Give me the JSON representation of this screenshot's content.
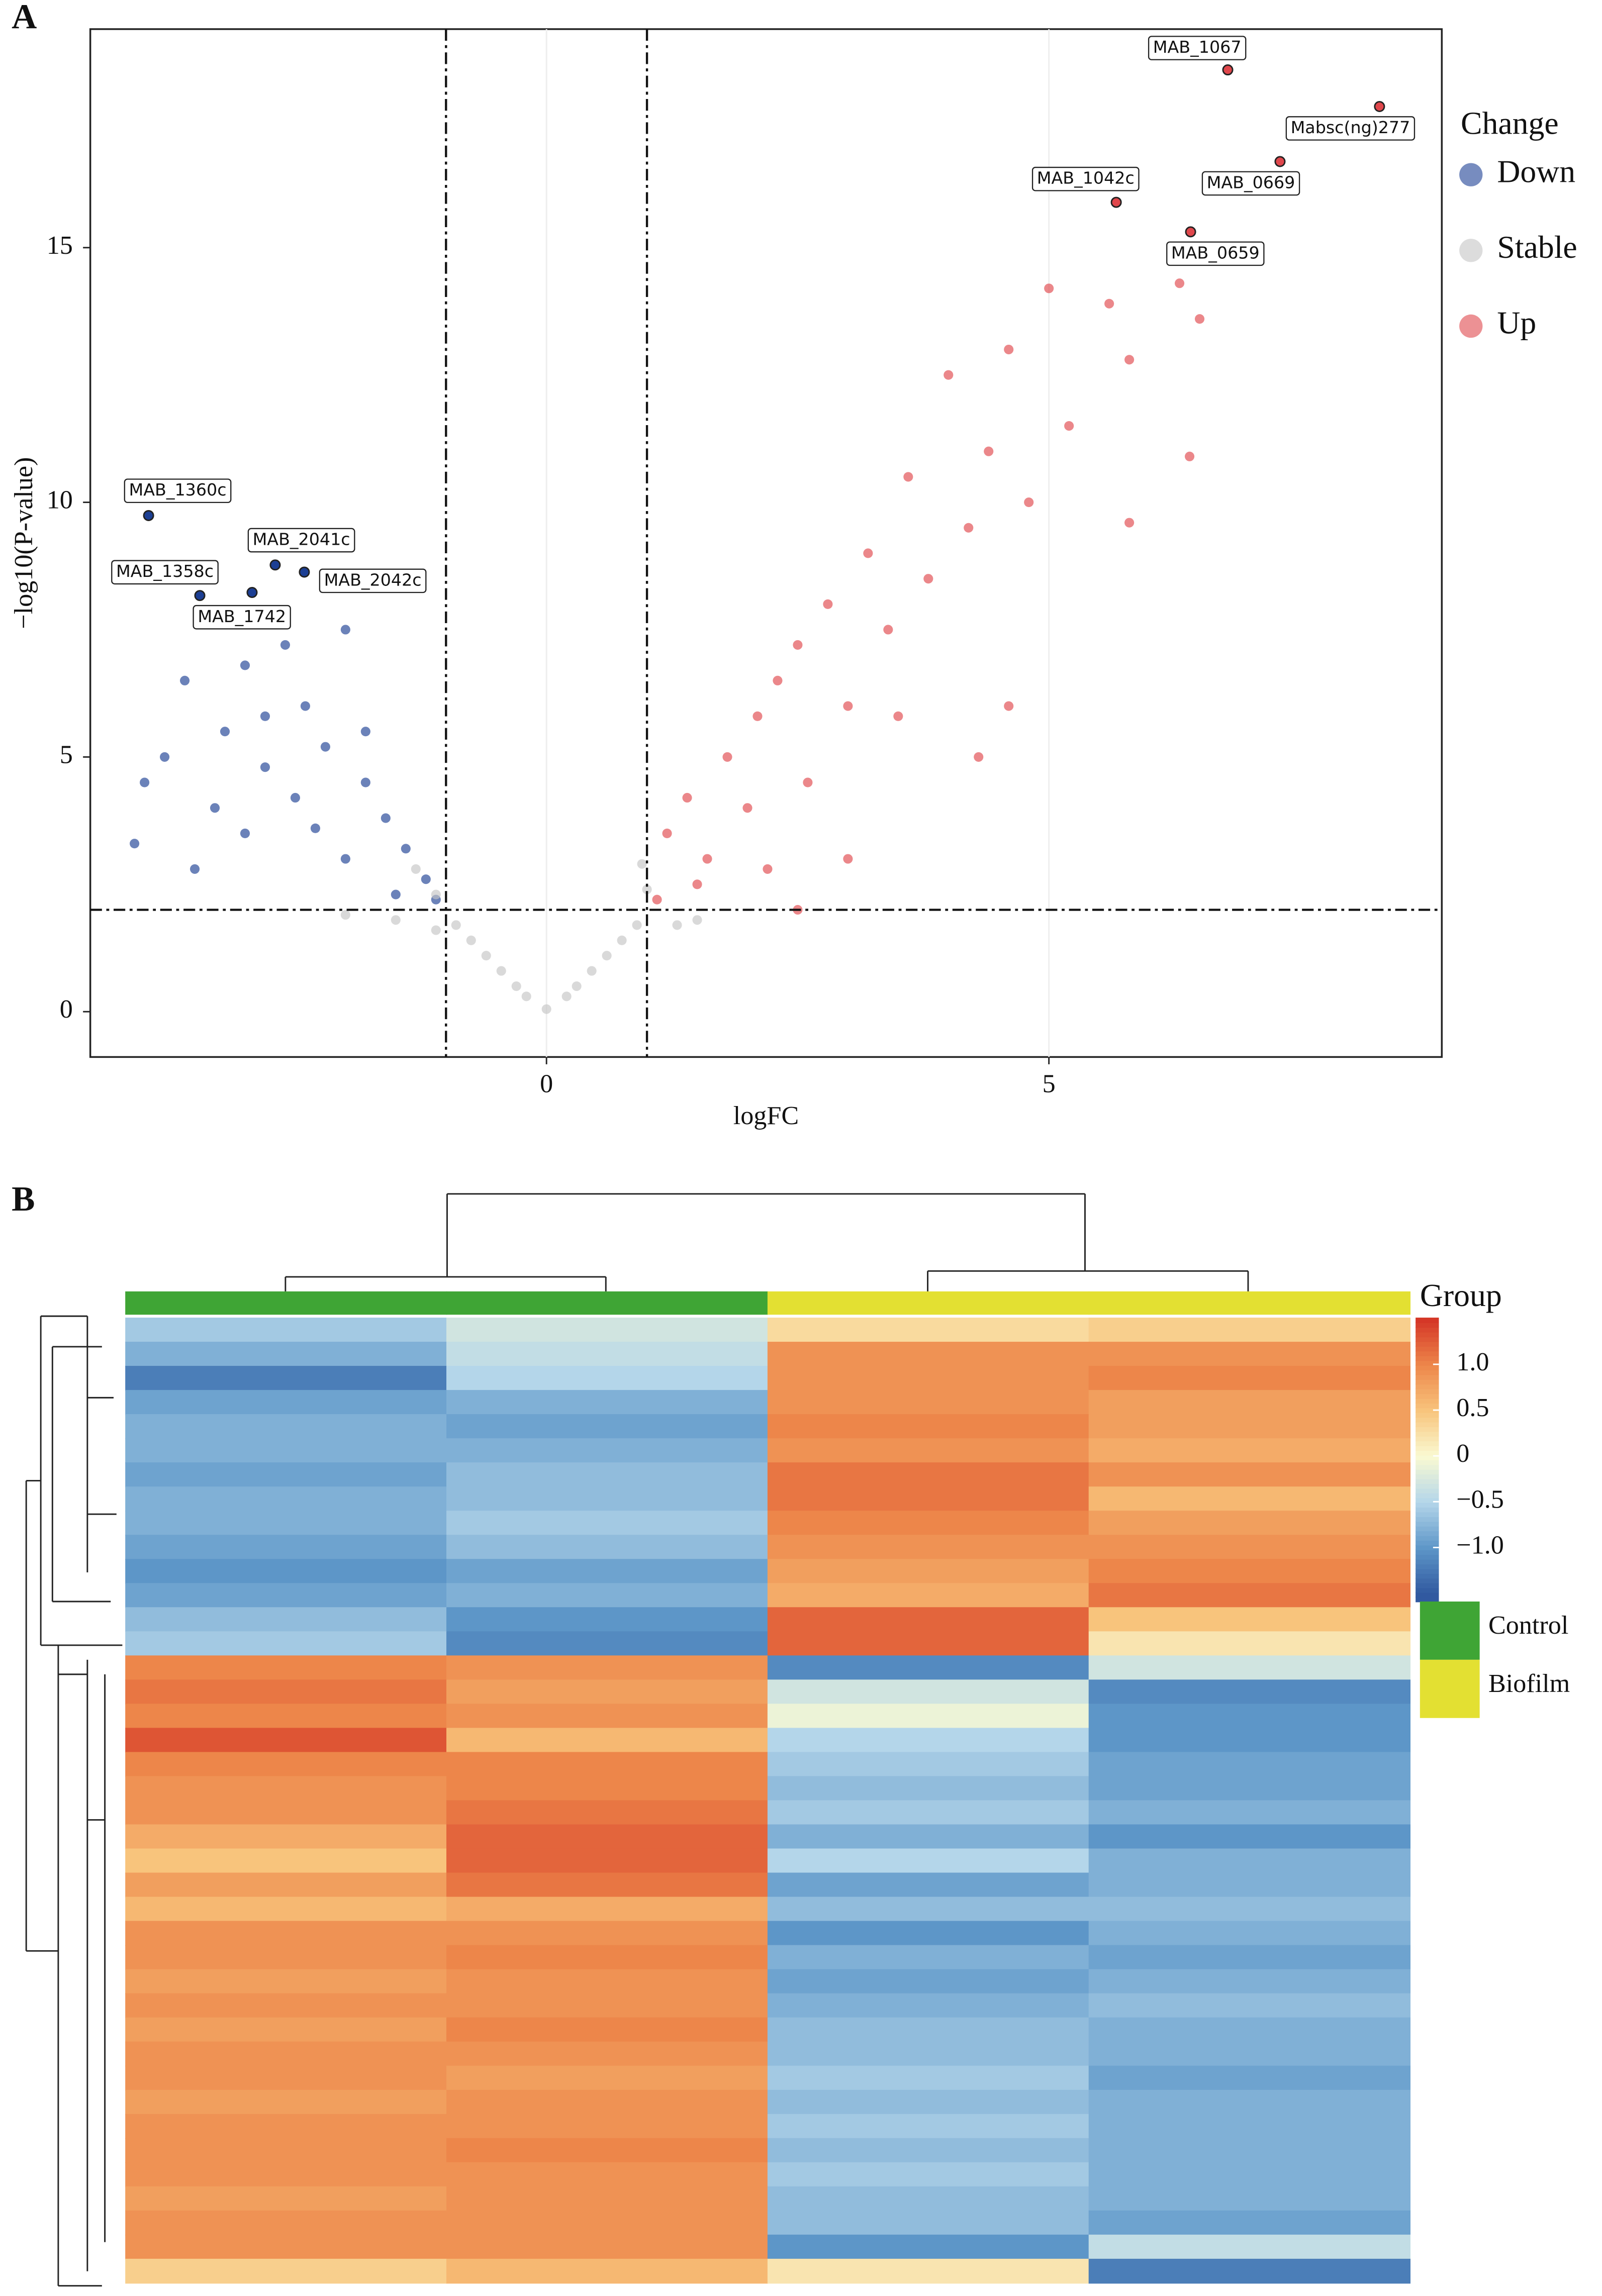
{
  "chart_data": [
    {
      "type": "scatter",
      "panel": "A",
      "xlabel": "logFC",
      "ylabel": "−log10(P-value)",
      "xlim": [
        -4.54,
        8.91
      ],
      "ylim": [
        -0.89,
        19.29
      ],
      "xticks": [
        0,
        5
      ],
      "yticks": [
        0,
        5,
        10,
        15
      ],
      "vlines": [
        -1,
        1
      ],
      "hlines": [
        2
      ],
      "legend_title": "Change",
      "legend": "right",
      "series": [
        {
          "name": "Down",
          "color": "#1c3f94",
          "x": [
            -4.0,
            -3.6,
            -3.2,
            -3.0,
            -2.8,
            -2.6,
            -2.4,
            -2.2,
            -2.0,
            -1.8,
            -1.6,
            -1.4,
            -1.2,
            -2.5,
            -3.0,
            -3.5,
            -4.1,
            -2.0,
            -1.5,
            -2.8,
            -3.3,
            -1.8,
            -2.3,
            -1.1,
            -3.8
          ],
          "y": [
            4.5,
            6.5,
            5.5,
            6.8,
            5.8,
            7.2,
            6.0,
            5.2,
            7.5,
            4.5,
            3.8,
            3.2,
            2.6,
            4.2,
            3.5,
            2.8,
            3.3,
            3.0,
            2.3,
            4.8,
            4.0,
            5.5,
            3.6,
            2.2,
            5.0
          ]
        },
        {
          "name": "Stable",
          "color": "#c4c4c4",
          "x": [
            0,
            -0.3,
            0.3,
            -0.6,
            0.6,
            -0.9,
            0.9,
            -1.1,
            1.0,
            -1.5,
            1.5,
            -2.0,
            -0.2,
            0.2,
            -0.45,
            0.45,
            -0.75,
            0.75,
            -1.3,
            0.95,
            1.3,
            -1.1
          ],
          "y": [
            0.05,
            0.5,
            0.5,
            1.1,
            1.1,
            1.7,
            1.7,
            2.3,
            2.4,
            1.8,
            1.8,
            1.9,
            0.3,
            0.3,
            0.8,
            0.8,
            1.4,
            1.4,
            2.8,
            2.9,
            1.7,
            1.6
          ]
        },
        {
          "name": "Up",
          "color": "#e0474c",
          "x": [
            1.1,
            1.2,
            1.4,
            1.6,
            1.8,
            2.0,
            2.1,
            2.3,
            2.5,
            2.6,
            2.8,
            3.0,
            3.2,
            3.4,
            3.6,
            3.8,
            4.0,
            4.2,
            4.4,
            4.6,
            4.8,
            5.0,
            5.2,
            5.6,
            5.8,
            6.3,
            6.5,
            6.4,
            5.8,
            4.6,
            4.3,
            3.0,
            2.5,
            3.5,
            2.2,
            1.5
          ],
          "y": [
            2.2,
            3.5,
            4.2,
            3.0,
            5.0,
            4.0,
            5.8,
            6.5,
            7.2,
            4.5,
            8.0,
            6.0,
            9.0,
            7.5,
            10.5,
            8.5,
            12.5,
            9.5,
            11.0,
            13.0,
            10.0,
            14.2,
            11.5,
            13.9,
            12.8,
            14.3,
            13.6,
            10.9,
            9.6,
            6.0,
            5.0,
            3.0,
            2.0,
            5.8,
            2.8,
            2.5
          ]
        }
      ],
      "annotations": [
        {
          "label": "MAB_1067",
          "x": 6.78,
          "y": 18.49,
          "series": 2
        },
        {
          "label": "Mabsc(ng)277",
          "x": 8.29,
          "y": 17.77,
          "series": 2
        },
        {
          "label": "MAB_0669",
          "x": 7.3,
          "y": 16.69,
          "series": 2
        },
        {
          "label": "MAB_1042c",
          "x": 5.67,
          "y": 15.89,
          "series": 2
        },
        {
          "label": "MAB_0659",
          "x": 6.41,
          "y": 15.31,
          "series": 2
        },
        {
          "label": "MAB_1360c",
          "x": -3.96,
          "y": 9.74,
          "series": 0
        },
        {
          "label": "MAB_2041c",
          "x": -2.7,
          "y": 8.77,
          "series": 0
        },
        {
          "label": "MAB_2042c",
          "x": -2.41,
          "y": 8.63,
          "series": 0
        },
        {
          "label": "MAB_1358c",
          "x": -3.45,
          "y": 8.17,
          "series": 0
        },
        {
          "label": "MAB_1742",
          "x": -2.93,
          "y": 8.23,
          "series": 0
        }
      ]
    },
    {
      "type": "heatmap",
      "panel": "B",
      "legend_title": "Group",
      "zlim": [
        -1.59,
        1.51
      ],
      "zticks": [
        {
          "value": 1,
          "label": "1.0"
        },
        0.5,
        0,
        {
          "value": -0.5,
          "label": "−0.5"
        },
        {
          "value": -1,
          "label": "−1.0"
        }
      ],
      "groups": [
        {
          "name": "Control",
          "color": "#3fa535"
        },
        {
          "name": "Biofilm",
          "color": "#e3e032"
        }
      ],
      "column_group": [
        0,
        0,
        1,
        1
      ],
      "rows": [
        [
          -0.6,
          -0.3,
          0.3,
          0.4
        ],
        [
          -0.8,
          -0.4,
          0.9,
          0.9
        ],
        [
          -1.2,
          -0.5,
          0.9,
          1.0
        ],
        [
          -0.9,
          -0.8,
          0.9,
          0.8
        ],
        [
          -0.8,
          -0.9,
          1.0,
          0.8
        ],
        [
          -0.8,
          -0.8,
          0.9,
          0.7
        ],
        [
          -0.9,
          -0.7,
          1.1,
          0.9
        ],
        [
          -0.8,
          -0.7,
          1.1,
          0.6
        ],
        [
          -0.8,
          -0.6,
          1.0,
          0.8
        ],
        [
          -0.9,
          -0.7,
          0.9,
          0.9
        ],
        [
          -1.0,
          -0.9,
          0.8,
          1.0
        ],
        [
          -0.9,
          -0.8,
          0.7,
          1.1
        ],
        [
          -0.7,
          -1.0,
          1.2,
          0.5
        ],
        [
          -0.6,
          -1.1,
          1.2,
          0.2
        ],
        [
          1.0,
          0.9,
          -1.1,
          -0.3
        ],
        [
          1.1,
          0.8,
          -0.3,
          -1.1
        ],
        [
          1.0,
          0.9,
          -0.1,
          -1.0
        ],
        [
          1.3,
          0.6,
          -0.5,
          -1.0
        ],
        [
          1.0,
          1.0,
          -0.6,
          -0.9
        ],
        [
          0.9,
          1.0,
          -0.7,
          -0.9
        ],
        [
          0.9,
          1.1,
          -0.6,
          -0.8
        ],
        [
          0.7,
          1.2,
          -0.8,
          -1.0
        ],
        [
          0.5,
          1.2,
          -0.5,
          -0.8
        ],
        [
          0.8,
          1.1,
          -0.9,
          -0.8
        ],
        [
          0.6,
          0.7,
          -0.7,
          -0.7
        ],
        [
          0.9,
          0.9,
          -1.0,
          -0.8
        ],
        [
          0.9,
          1.0,
          -0.8,
          -0.9
        ],
        [
          0.8,
          0.9,
          -0.9,
          -0.8
        ],
        [
          0.9,
          0.9,
          -0.8,
          -0.7
        ],
        [
          0.8,
          1.0,
          -0.7,
          -0.8
        ],
        [
          0.9,
          0.9,
          -0.7,
          -0.8
        ],
        [
          0.9,
          0.8,
          -0.6,
          -0.9
        ],
        [
          0.8,
          0.9,
          -0.7,
          -0.8
        ],
        [
          0.9,
          0.9,
          -0.6,
          -0.8
        ],
        [
          0.9,
          1.0,
          -0.7,
          -0.8
        ],
        [
          0.9,
          0.9,
          -0.6,
          -0.8
        ],
        [
          0.8,
          0.9,
          -0.7,
          -0.8
        ],
        [
          0.9,
          0.9,
          -0.7,
          -0.9
        ],
        [
          0.9,
          0.9,
          -1.0,
          -0.4
        ],
        [
          0.4,
          0.6,
          0.2,
          -1.2
        ]
      ]
    }
  ]
}
